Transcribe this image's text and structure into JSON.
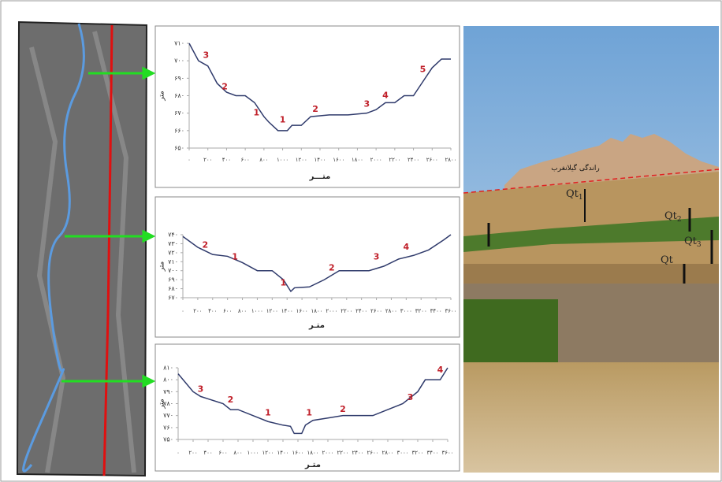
{
  "chart_data": [
    {
      "type": "line",
      "y_label": "متر",
      "x_label": "متـــر",
      "x": [
        0,
        100,
        200,
        300,
        400,
        500,
        600,
        700,
        800,
        850,
        950,
        1050,
        1100,
        1200,
        1300,
        1500,
        1700,
        1900,
        2000,
        2100,
        2200,
        2300,
        2400,
        2500,
        2600,
        2700,
        2800
      ],
      "series": [
        {
          "color": "#2f3a6b",
          "values": [
            710,
            700,
            697,
            687,
            682,
            680,
            680,
            676,
            668,
            665,
            660,
            660,
            663,
            663,
            668,
            669,
            669,
            670,
            672,
            676,
            676,
            680,
            680,
            688,
            696,
            701,
            701
          ]
        }
      ],
      "xlim": [
        0,
        2800
      ],
      "ylim": [
        650,
        710
      ],
      "xticks": [
        {
          "value": 0,
          "label": "۰"
        },
        {
          "value": 200,
          "label": "۲۰۰"
        },
        {
          "value": 400,
          "label": "۴۰۰"
        },
        {
          "value": 600,
          "label": "۶۰۰"
        },
        {
          "value": 800,
          "label": "۸۰۰"
        },
        {
          "value": 1000,
          "label": "۱۰۰۰"
        },
        {
          "value": 1200,
          "label": "۱۲۰۰"
        },
        {
          "value": 1400,
          "label": "۱۴۰۰"
        },
        {
          "value": 1600,
          "label": "۱۶۰۰"
        },
        {
          "value": 1800,
          "label": "۱۸۰۰"
        },
        {
          "value": 2000,
          "label": "۲۰۰۰"
        },
        {
          "value": 2200,
          "label": "۲۲۰۰"
        },
        {
          "value": 2400,
          "label": "۲۴۰۰"
        },
        {
          "value": 2600,
          "label": "۲۶۰۰"
        },
        {
          "value": 2800,
          "label": "۲۸۰۰"
        }
      ],
      "yticks": [
        {
          "value": 650,
          "label": "۶۵۰"
        },
        {
          "value": 660,
          "label": "۶۶۰"
        },
        {
          "value": 670,
          "label": "۶۷۰"
        },
        {
          "value": 680,
          "label": "۶۸۰"
        },
        {
          "value": 690,
          "label": "۶۹۰"
        },
        {
          "value": 700,
          "label": "۷۰۰"
        },
        {
          "value": 710,
          "label": "۷۱۰"
        }
      ],
      "annotations": [
        {
          "text": "3",
          "x": 180,
          "y": 703
        },
        {
          "text": "2",
          "x": 380,
          "y": 685
        },
        {
          "text": "1",
          "x": 720,
          "y": 670
        },
        {
          "text": "1",
          "x": 1000,
          "y": 666
        },
        {
          "text": "2",
          "x": 1350,
          "y": 672
        },
        {
          "text": "3",
          "x": 1900,
          "y": 675
        },
        {
          "text": "4",
          "x": 2100,
          "y": 680
        },
        {
          "text": "5",
          "x": 2500,
          "y": 695
        }
      ]
    },
    {
      "type": "line",
      "y_label": "متر",
      "x_label": "متـر",
      "x": [
        0,
        200,
        400,
        600,
        800,
        1000,
        1200,
        1350,
        1450,
        1500,
        1700,
        1900,
        2100,
        2300,
        2500,
        2700,
        2900,
        3100,
        3300,
        3500,
        3600
      ],
      "series": [
        {
          "color": "#2f3a6b",
          "values": [
            738,
            726,
            718,
            716,
            709,
            700,
            700,
            690,
            677,
            681,
            682,
            690,
            700,
            700,
            700,
            705,
            713,
            717,
            723,
            734,
            740
          ]
        }
      ],
      "xlim": [
        0,
        3600
      ],
      "ylim": [
        670,
        740
      ],
      "xticks": [
        {
          "value": 0,
          "label": "۰"
        },
        {
          "value": 200,
          "label": "۲۰۰"
        },
        {
          "value": 400,
          "label": "۴۰۰"
        },
        {
          "value": 600,
          "label": "۶۰۰"
        },
        {
          "value": 800,
          "label": "۸۰۰"
        },
        {
          "value": 1000,
          "label": "۱۰۰۰"
        },
        {
          "value": 1200,
          "label": "۱۲۰۰"
        },
        {
          "value": 1400,
          "label": "۱۴۰۰"
        },
        {
          "value": 1600,
          "label": "۱۶۰۰"
        },
        {
          "value": 1800,
          "label": "۱۸۰۰"
        },
        {
          "value": 2000,
          "label": "۲۰۰۰"
        },
        {
          "value": 2200,
          "label": "۲۲۰۰"
        },
        {
          "value": 2400,
          "label": "۲۴۰۰"
        },
        {
          "value": 2600,
          "label": "۲۶۰۰"
        },
        {
          "value": 2800,
          "label": "۲۸۰۰"
        },
        {
          "value": 3000,
          "label": "۳۰۰۰"
        },
        {
          "value": 3200,
          "label": "۳۲۰۰"
        },
        {
          "value": 3400,
          "label": "۳۴۰۰"
        },
        {
          "value": 3600,
          "label": "۳۶۰۰"
        }
      ],
      "yticks": [
        {
          "value": 670,
          "label": "۶۷۰"
        },
        {
          "value": 680,
          "label": "۶۸۰"
        },
        {
          "value": 690,
          "label": "۶۹۰"
        },
        {
          "value": 700,
          "label": "۷۰۰"
        },
        {
          "value": 710,
          "label": "۷۱۰"
        },
        {
          "value": 720,
          "label": "۷۲۰"
        },
        {
          "value": 730,
          "label": "۷۳۰"
        },
        {
          "value": 740,
          "label": "۷۴۰"
        }
      ],
      "annotations": [
        {
          "text": "2",
          "x": 300,
          "y": 728
        },
        {
          "text": "1",
          "x": 700,
          "y": 715
        },
        {
          "text": "1",
          "x": 1350,
          "y": 686
        },
        {
          "text": "2",
          "x": 2000,
          "y": 703
        },
        {
          "text": "3",
          "x": 2600,
          "y": 715
        },
        {
          "text": "4",
          "x": 3000,
          "y": 726
        }
      ]
    },
    {
      "type": "line",
      "y_label": "متر",
      "x_label": "متـر",
      "x": [
        0,
        200,
        300,
        400,
        600,
        700,
        800,
        1000,
        1200,
        1400,
        1500,
        1550,
        1650,
        1700,
        1800,
        2000,
        2200,
        2400,
        2600,
        2800,
        3000,
        3200,
        3300,
        3500,
        3600
      ],
      "series": [
        {
          "color": "#2f3a6b",
          "values": [
            805,
            790,
            786,
            784,
            780,
            775,
            775,
            770,
            765,
            762,
            761,
            755,
            755,
            762,
            766,
            768,
            770,
            770,
            770,
            775,
            780,
            790,
            800,
            800,
            810
          ]
        }
      ],
      "xlim": [
        0,
        3600
      ],
      "ylim": [
        750,
        810
      ],
      "xticks": [
        {
          "value": 0,
          "label": "۰"
        },
        {
          "value": 200,
          "label": "۲۰۰"
        },
        {
          "value": 400,
          "label": "۴۰۰"
        },
        {
          "value": 600,
          "label": "۶۰۰"
        },
        {
          "value": 800,
          "label": "۸۰۰"
        },
        {
          "value": 1000,
          "label": "۱۰۰۰"
        },
        {
          "value": 1200,
          "label": "۱۲۰۰"
        },
        {
          "value": 1400,
          "label": "۱۴۰۰"
        },
        {
          "value": 1600,
          "label": "۱۶۰۰"
        },
        {
          "value": 1800,
          "label": "۱۸۰۰"
        },
        {
          "value": 2000,
          "label": "۲۰۰۰"
        },
        {
          "value": 2200,
          "label": "۲۲۰۰"
        },
        {
          "value": 2400,
          "label": "۲۴۰۰"
        },
        {
          "value": 2600,
          "label": "۲۶۰۰"
        },
        {
          "value": 2800,
          "label": "۲۸۰۰"
        },
        {
          "value": 3000,
          "label": "۳۰۰۰"
        },
        {
          "value": 3200,
          "label": "۳۲۰۰"
        },
        {
          "value": 3400,
          "label": "۳۴۰۰"
        },
        {
          "value": 3600,
          "label": "۳۶۰۰"
        }
      ],
      "yticks": [
        {
          "value": 750,
          "label": "۷۵۰"
        },
        {
          "value": 760,
          "label": "۷۶۰"
        },
        {
          "value": 770,
          "label": "۷۷۰"
        },
        {
          "value": 780,
          "label": "۷۸۰"
        },
        {
          "value": 790,
          "label": "۷۹۰"
        },
        {
          "value": 800,
          "label": "۸۰۰"
        },
        {
          "value": 810,
          "label": "۸۱۰"
        }
      ],
      "annotations": [
        {
          "text": "3",
          "x": 300,
          "y": 792
        },
        {
          "text": "2",
          "x": 700,
          "y": 783
        },
        {
          "text": "1",
          "x": 1200,
          "y": 772
        },
        {
          "text": "1",
          "x": 1750,
          "y": 772
        },
        {
          "text": "2",
          "x": 2200,
          "y": 775
        },
        {
          "text": "3",
          "x": 3100,
          "y": 785
        },
        {
          "text": "4",
          "x": 3500,
          "y": 808
        }
      ]
    }
  ],
  "photo": {
    "labels": [
      {
        "text": "راندگی گیلانغرب"
      },
      {
        "text": "Qt",
        "sub": "1"
      },
      {
        "text": "Qt",
        "sub": "2"
      },
      {
        "text": "Qt",
        "sub": "3"
      },
      {
        "text": "Qt"
      }
    ]
  }
}
